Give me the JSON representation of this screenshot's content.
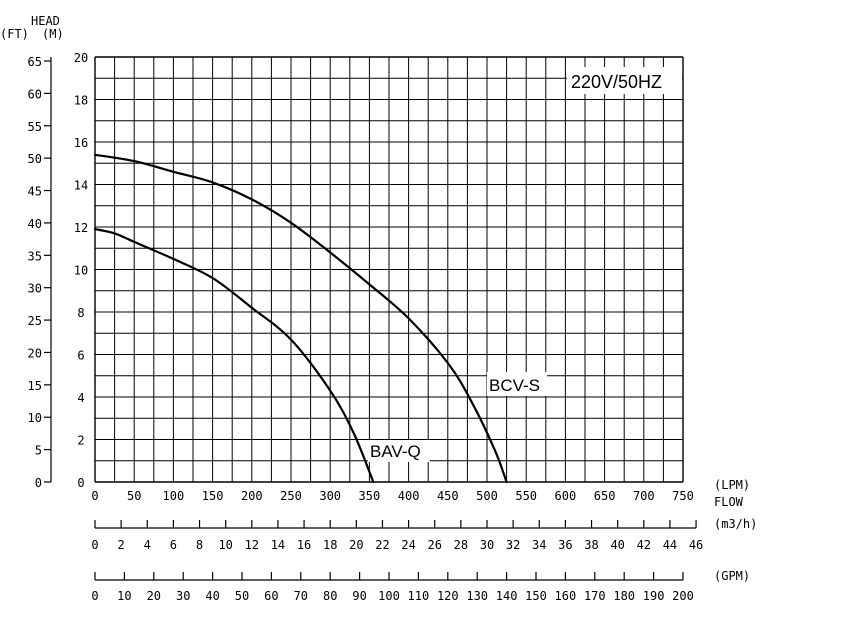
{
  "chart_data": {
    "type": "line",
    "title": "",
    "annotation": "220V/50HZ",
    "y_header": "HEAD",
    "y_unit_left": "(FT)",
    "y_unit_right": "(M)",
    "x_unit_lpm": "(LPM)",
    "x_title": "FLOW",
    "x_unit_m3h": "(m3/h)",
    "x_unit_gpm": "(GPM)",
    "ylim_m": [
      0,
      20
    ],
    "xlim_lpm": [
      0,
      750
    ],
    "grid": true,
    "ft_ticks": [
      "65",
      "60",
      "55",
      "50",
      "45",
      "40",
      "35",
      "30",
      "25",
      "20",
      "15",
      "10",
      "5",
      "0"
    ],
    "m_ticks": [
      "20",
      "18",
      "16",
      "14",
      "12",
      "10",
      "8",
      "6",
      "4",
      "2",
      "0"
    ],
    "lpm_ticks": [
      "0",
      "50",
      "100",
      "150",
      "200",
      "250",
      "300",
      "350",
      "400",
      "450",
      "500",
      "550",
      "600",
      "650",
      "700",
      "750"
    ],
    "m3h_ticks": [
      "0",
      "2",
      "4",
      "6",
      "8",
      "10",
      "12",
      "14",
      "16",
      "18",
      "20",
      "22",
      "24",
      "26",
      "28",
      "30",
      "32",
      "34",
      "36",
      "38",
      "40",
      "42",
      "44",
      "46"
    ],
    "gpm_ticks": [
      "0",
      "10",
      "20",
      "30",
      "40",
      "50",
      "60",
      "70",
      "80",
      "90",
      "100",
      "110",
      "120",
      "130",
      "140",
      "150",
      "160",
      "170",
      "180",
      "190",
      "200"
    ],
    "series": [
      {
        "name": "BCV-S",
        "points": [
          [
            0,
            15.4
          ],
          [
            50,
            15.1
          ],
          [
            100,
            14.6
          ],
          [
            150,
            14.1
          ],
          [
            200,
            13.3
          ],
          [
            250,
            12.2
          ],
          [
            300,
            10.8
          ],
          [
            350,
            9.3
          ],
          [
            400,
            7.7
          ],
          [
            450,
            5.6
          ],
          [
            480,
            3.8
          ],
          [
            510,
            1.5
          ],
          [
            525,
            0
          ]
        ]
      },
      {
        "name": "BAV-Q",
        "points": [
          [
            0,
            11.9
          ],
          [
            25,
            11.7
          ],
          [
            50,
            11.3
          ],
          [
            100,
            10.5
          ],
          [
            150,
            9.6
          ],
          [
            200,
            8.2
          ],
          [
            250,
            6.7
          ],
          [
            300,
            4.3
          ],
          [
            330,
            2.3
          ],
          [
            355,
            0
          ]
        ]
      }
    ]
  }
}
